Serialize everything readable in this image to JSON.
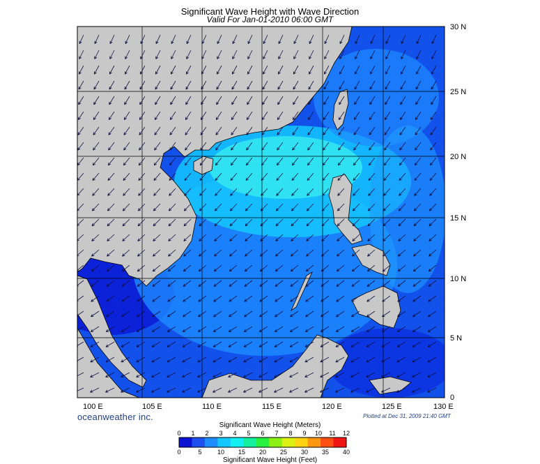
{
  "title": "Significant Wave Height with Wave Direction",
  "subtitle": "Valid For Jan-01-2010 06:00 GMT",
  "lon_labels": [
    "100 E",
    "105 E",
    "110 E",
    "115 E",
    "120 E",
    "125 E",
    "130 E"
  ],
  "lat_labels": [
    "0",
    "5 N",
    "10 N",
    "15 N",
    "20 N",
    "25 N",
    "30 N"
  ],
  "brand": "oceanweather inc.",
  "plotted": "Plotted at Dec 31, 2009 21:40 GMT",
  "scale": {
    "title_meters": "Significant Wave Height (Meters)",
    "title_feet": "Significant Wave Height (Feet)",
    "meters_ticks": [
      "0",
      "1",
      "2",
      "3",
      "4",
      "5",
      "6",
      "7",
      "8",
      "9",
      "10",
      "11",
      "12"
    ],
    "feet_ticks": [
      "0",
      "5",
      "10",
      "15",
      "20",
      "25",
      "30",
      "35",
      "40"
    ],
    "colors": [
      "#0a14d2",
      "#1e50f0",
      "#1e8cff",
      "#14c8ff",
      "#14f0f0",
      "#14f0a0",
      "#28f040",
      "#8cf014",
      "#dcf014",
      "#ffd214",
      "#ff9614",
      "#ff5014",
      "#f01414"
    ]
  },
  "colors": {
    "land": "#c8c8c8",
    "ocean_deep": "#0a2fe0",
    "ocean_mid": "#1e7cf5",
    "ocean_light": "#22d0f5",
    "ocean_peak": "#4ff2e8",
    "arrow": "#101040"
  }
}
